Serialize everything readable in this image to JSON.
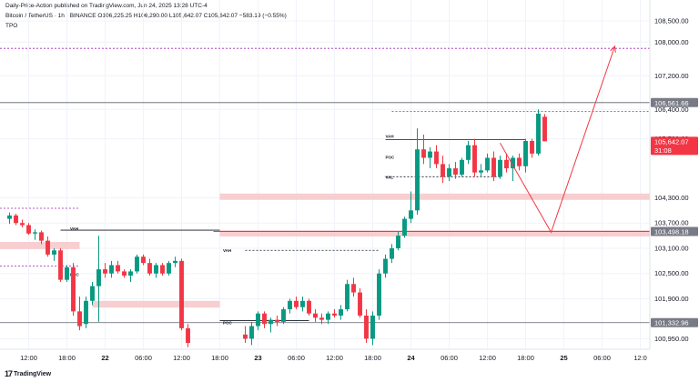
{
  "header": {
    "published_line": "Daily-Price-Action published on TradingView.com, Jun 24, 2025 13:28 UTC-4",
    "symbol_line": "Bitcoin / TetherUS · 1h · BINANCE  O106,225.25  H106,290.00  L105,642.07  C105,642.07  −583.19 (−0.55%)",
    "indicator_line": "TPO"
  },
  "watermark": {
    "logo_icon": "tradingview-logo-icon",
    "text": "TradingView"
  },
  "chart_data": {
    "type": "candlestick",
    "title": "",
    "y_axis": {
      "side": "right",
      "ticks": [
        108500,
        108000,
        107200,
        106400,
        105700,
        104300,
        103700,
        103100,
        102500,
        101900,
        100950
      ],
      "tick_labels": [
        "108,500.00",
        "108,000.00",
        "107,200.00",
        "106,400.00",
        "105,700.00",
        "104,300.00",
        "103,700.00",
        "103,100.00",
        "102,500.00",
        "101,900.00",
        "100,950.00"
      ],
      "range": [
        100700,
        109000
      ]
    },
    "x_axis": {
      "ticks": [
        {
          "label": "12:00",
          "t": 0
        },
        {
          "label": "18:00",
          "t": 6
        },
        {
          "label": "22",
          "t": 12
        },
        {
          "label": "06:00",
          "t": 18
        },
        {
          "label": "12:00",
          "t": 24
        },
        {
          "label": "18:00",
          "t": 30
        },
        {
          "label": "23",
          "t": 36
        },
        {
          "label": "06:00",
          "t": 42
        },
        {
          "label": "12:00",
          "t": 48
        },
        {
          "label": "18:00",
          "t": 54
        },
        {
          "label": "24",
          "t": 60
        },
        {
          "label": "06:00",
          "t": 66
        },
        {
          "label": "12:00",
          "t": 72
        },
        {
          "label": "18:00",
          "t": 78
        },
        {
          "label": "25",
          "t": 84
        },
        {
          "label": "06:00",
          "t": 90
        },
        {
          "label": "12:0",
          "t": 96
        }
      ],
      "range": [
        -4.5,
        97.5
      ]
    },
    "price_badges": [
      {
        "value": 106561.66,
        "label": "106,561.66",
        "color": "#787b86"
      },
      {
        "value": 105642.07,
        "label": "105,642.07",
        "sublabel": "31:08",
        "color": "#f23645"
      },
      {
        "value": 103498.18,
        "label": "103,498.18",
        "color": "#787b86"
      },
      {
        "value": 101332.96,
        "label": "101,332.96",
        "color": "#787b86"
      }
    ],
    "horizontal_lines": [
      {
        "value": 106561.66,
        "from_t": -4.5,
        "to_t": 97.5,
        "color": "#5d606b",
        "dash": false
      },
      {
        "value": 103498.18,
        "from_t": 29,
        "to_t": 97.5,
        "color": "#5d606b",
        "dash": false
      },
      {
        "value": 101332.96,
        "from_t": -4.5,
        "to_t": 97.5,
        "color": "#5d606b",
        "dash": false
      },
      {
        "value": 107850,
        "from_t": -4.5,
        "to_t": 97.5,
        "color": "#9c27b0",
        "dash": true
      },
      {
        "value": 104050,
        "from_t": -4.5,
        "to_t": 8,
        "color": "#9c27b0",
        "dash": true
      },
      {
        "value": 102680,
        "from_t": -4.5,
        "to_t": 8,
        "color": "#9c27b0",
        "dash": true
      },
      {
        "value": 103530,
        "from_t": 5,
        "to_t": 30,
        "color": "#131722",
        "dash": false
      },
      {
        "value": 101380,
        "from_t": 30,
        "to_t": 44,
        "color": "#131722",
        "dash": false
      },
      {
        "value": 103050,
        "from_t": 34,
        "to_t": 55,
        "color": "#131722",
        "dash": true
      },
      {
        "value": 106350,
        "from_t": 57,
        "to_t": 97.5,
        "color": "#9c27b0",
        "dash": true
      },
      {
        "value": 105680,
        "from_t": 56,
        "to_t": 78,
        "color": "#131722",
        "dash": false
      },
      {
        "value": 104800,
        "from_t": 56,
        "to_t": 74,
        "color": "#131722",
        "dash": true
      }
    ],
    "zones": [
      {
        "from_t": -4.5,
        "to_t": 8,
        "low": 103080,
        "high": 103250,
        "color": "#f7c6c9"
      },
      {
        "from_t": 10,
        "to_t": 30,
        "low": 101690,
        "high": 101850,
        "color": "#f7c6c9"
      },
      {
        "from_t": 30,
        "to_t": 97.5,
        "low": 104250,
        "high": 104400,
        "color": "#f7c6c9"
      },
      {
        "from_t": 30,
        "to_t": 97.5,
        "low": 103380,
        "high": 103530,
        "color": "#f7c6c9"
      }
    ],
    "tpo_labels": [
      {
        "text": "VAH",
        "t": 6.5,
        "value": 103560
      },
      {
        "text": "POC",
        "t": 6.5,
        "value": 102470
      },
      {
        "text": "VAH",
        "t": 30.5,
        "value": 103050
      },
      {
        "text": "POC",
        "t": 30.5,
        "value": 101330
      },
      {
        "text": "VAH",
        "t": 56,
        "value": 105760
      },
      {
        "text": "POC",
        "t": 56,
        "value": 105260
      },
      {
        "text": "VAL",
        "t": 56,
        "value": 104780
      }
    ],
    "projection": {
      "color": "#f23645",
      "points": [
        {
          "t": 74,
          "value": 105600
        },
        {
          "t": 82,
          "value": 103480
        },
        {
          "t": 92,
          "value": 107900
        }
      ]
    },
    "candles": [
      {
        "t": -3,
        "o": 103800,
        "h": 103950,
        "l": 103680,
        "c": 103880
      },
      {
        "t": -2,
        "o": 103880,
        "h": 103920,
        "l": 103650,
        "c": 103700
      },
      {
        "t": -1,
        "o": 103700,
        "h": 103780,
        "l": 103600,
        "c": 103650
      },
      {
        "t": 0,
        "o": 103650,
        "h": 103700,
        "l": 103420,
        "c": 103450
      },
      {
        "t": 1,
        "o": 103450,
        "h": 103550,
        "l": 103300,
        "c": 103480
      },
      {
        "t": 2,
        "o": 103480,
        "h": 103520,
        "l": 103200,
        "c": 103280
      },
      {
        "t": 3,
        "o": 103280,
        "h": 103380,
        "l": 102900,
        "c": 102950
      },
      {
        "t": 4,
        "o": 102950,
        "h": 103100,
        "l": 102800,
        "c": 103050
      },
      {
        "t": 5,
        "o": 103050,
        "h": 103100,
        "l": 102300,
        "c": 102350
      },
      {
        "t": 6,
        "o": 102350,
        "h": 102700,
        "l": 102300,
        "c": 102650
      },
      {
        "t": 7,
        "o": 102650,
        "h": 102750,
        "l": 101500,
        "c": 101600
      },
      {
        "t": 8,
        "o": 101600,
        "h": 101950,
        "l": 101150,
        "c": 101250
      },
      {
        "t": 9,
        "o": 101300,
        "h": 101950,
        "l": 101200,
        "c": 101850
      },
      {
        "t": 10,
        "o": 101850,
        "h": 102300,
        "l": 101750,
        "c": 102200
      },
      {
        "t": 11,
        "o": 102200,
        "h": 103400,
        "l": 101350,
        "c": 102600
      },
      {
        "t": 12,
        "o": 102600,
        "h": 102750,
        "l": 102400,
        "c": 102500
      },
      {
        "t": 13,
        "o": 102500,
        "h": 102800,
        "l": 102400,
        "c": 102700
      },
      {
        "t": 14,
        "o": 102700,
        "h": 102800,
        "l": 102500,
        "c": 102550
      },
      {
        "t": 15,
        "o": 102550,
        "h": 102600,
        "l": 102400,
        "c": 102450
      },
      {
        "t": 16,
        "o": 102450,
        "h": 102600,
        "l": 102300,
        "c": 102550
      },
      {
        "t": 17,
        "o": 102550,
        "h": 102950,
        "l": 102500,
        "c": 102900
      },
      {
        "t": 18,
        "o": 102900,
        "h": 102950,
        "l": 102700,
        "c": 102750
      },
      {
        "t": 19,
        "o": 102750,
        "h": 102850,
        "l": 102450,
        "c": 102500
      },
      {
        "t": 20,
        "o": 102500,
        "h": 102750,
        "l": 102400,
        "c": 102700
      },
      {
        "t": 21,
        "o": 102700,
        "h": 102750,
        "l": 102450,
        "c": 102500
      },
      {
        "t": 22,
        "o": 102500,
        "h": 102800,
        "l": 102450,
        "c": 102750
      },
      {
        "t": 23,
        "o": 102750,
        "h": 102900,
        "l": 102650,
        "c": 102800
      },
      {
        "t": 24,
        "o": 102800,
        "h": 102850,
        "l": 101150,
        "c": 101200
      },
      {
        "t": 25,
        "o": 101200,
        "h": 101300,
        "l": 100750,
        "c": 100850
      },
      {
        "t": 34,
        "o": 101050,
        "h": 101250,
        "l": 100850,
        "c": 100950
      },
      {
        "t": 35,
        "o": 100950,
        "h": 101350,
        "l": 100800,
        "c": 101250
      },
      {
        "t": 36,
        "o": 101250,
        "h": 101600,
        "l": 101150,
        "c": 101550
      },
      {
        "t": 37,
        "o": 101550,
        "h": 101600,
        "l": 101200,
        "c": 101300
      },
      {
        "t": 38,
        "o": 101300,
        "h": 101450,
        "l": 101100,
        "c": 101400
      },
      {
        "t": 39,
        "o": 101400,
        "h": 101500,
        "l": 101250,
        "c": 101350
      },
      {
        "t": 40,
        "o": 101350,
        "h": 101700,
        "l": 101300,
        "c": 101650
      },
      {
        "t": 41,
        "o": 101650,
        "h": 101900,
        "l": 101550,
        "c": 101850
      },
      {
        "t": 42,
        "o": 101850,
        "h": 101950,
        "l": 101650,
        "c": 101700
      },
      {
        "t": 43,
        "o": 101700,
        "h": 101950,
        "l": 101600,
        "c": 101850
      },
      {
        "t": 44,
        "o": 101850,
        "h": 101900,
        "l": 101500,
        "c": 101550
      },
      {
        "t": 45,
        "o": 101550,
        "h": 101650,
        "l": 101350,
        "c": 101450
      },
      {
        "t": 46,
        "o": 101450,
        "h": 101550,
        "l": 101300,
        "c": 101400
      },
      {
        "t": 47,
        "o": 101400,
        "h": 101600,
        "l": 101300,
        "c": 101550
      },
      {
        "t": 48,
        "o": 101550,
        "h": 101650,
        "l": 101450,
        "c": 101500
      },
      {
        "t": 49,
        "o": 101500,
        "h": 101750,
        "l": 101400,
        "c": 101650
      },
      {
        "t": 50,
        "o": 101650,
        "h": 102350,
        "l": 101600,
        "c": 102250
      },
      {
        "t": 51,
        "o": 102250,
        "h": 102400,
        "l": 101950,
        "c": 102050
      },
      {
        "t": 52,
        "o": 102050,
        "h": 102150,
        "l": 101450,
        "c": 101500
      },
      {
        "t": 53,
        "o": 101500,
        "h": 101650,
        "l": 100850,
        "c": 100950
      },
      {
        "t": 54,
        "o": 100950,
        "h": 101600,
        "l": 100800,
        "c": 101500
      },
      {
        "t": 55,
        "o": 101500,
        "h": 102600,
        "l": 101400,
        "c": 102500
      },
      {
        "t": 56,
        "o": 102500,
        "h": 102950,
        "l": 102400,
        "c": 102850
      },
      {
        "t": 57,
        "o": 102850,
        "h": 103200,
        "l": 102750,
        "c": 103100
      },
      {
        "t": 58,
        "o": 103100,
        "h": 103500,
        "l": 103050,
        "c": 103400
      },
      {
        "t": 59,
        "o": 103400,
        "h": 103850,
        "l": 103350,
        "c": 103800
      },
      {
        "t": 60,
        "o": 103800,
        "h": 104450,
        "l": 103700,
        "c": 104000
      },
      {
        "t": 61,
        "o": 104000,
        "h": 105950,
        "l": 103900,
        "c": 105450
      },
      {
        "t": 62,
        "o": 105450,
        "h": 105800,
        "l": 105100,
        "c": 105250
      },
      {
        "t": 63,
        "o": 105250,
        "h": 105500,
        "l": 105000,
        "c": 105400
      },
      {
        "t": 64,
        "o": 105400,
        "h": 105550,
        "l": 105000,
        "c": 105100
      },
      {
        "t": 65,
        "o": 105100,
        "h": 105300,
        "l": 104650,
        "c": 104800
      },
      {
        "t": 66,
        "o": 104800,
        "h": 105100,
        "l": 104700,
        "c": 105000
      },
      {
        "t": 67,
        "o": 105000,
        "h": 105150,
        "l": 104750,
        "c": 104850
      },
      {
        "t": 68,
        "o": 104850,
        "h": 105250,
        "l": 104800,
        "c": 105200
      },
      {
        "t": 69,
        "o": 105200,
        "h": 105650,
        "l": 105100,
        "c": 105550
      },
      {
        "t": 70,
        "o": 105550,
        "h": 105700,
        "l": 104800,
        "c": 104900
      },
      {
        "t": 71,
        "o": 104900,
        "h": 105100,
        "l": 104800,
        "c": 104950
      },
      {
        "t": 72,
        "o": 104950,
        "h": 105350,
        "l": 104900,
        "c": 105250
      },
      {
        "t": 73,
        "o": 105250,
        "h": 105400,
        "l": 104700,
        "c": 104800
      },
      {
        "t": 74,
        "o": 104800,
        "h": 105300,
        "l": 104750,
        "c": 105200
      },
      {
        "t": 75,
        "o": 105200,
        "h": 105350,
        "l": 104900,
        "c": 105000
      },
      {
        "t": 76,
        "o": 105000,
        "h": 105300,
        "l": 104700,
        "c": 105250
      },
      {
        "t": 77,
        "o": 105250,
        "h": 105350,
        "l": 104950,
        "c": 105050
      },
      {
        "t": 78,
        "o": 105050,
        "h": 105700,
        "l": 104900,
        "c": 105650
      },
      {
        "t": 79,
        "o": 105650,
        "h": 105700,
        "l": 105250,
        "c": 105350
      },
      {
        "t": 80,
        "o": 105350,
        "h": 106400,
        "l": 105300,
        "c": 106300
      },
      {
        "t": 81,
        "o": 106225.25,
        "h": 106290,
        "l": 105642.07,
        "c": 105642.07
      }
    ],
    "colors": {
      "up": "#089981",
      "down": "#f23645",
      "grid": "#f0f3fa",
      "axis_text": "#131722"
    }
  }
}
